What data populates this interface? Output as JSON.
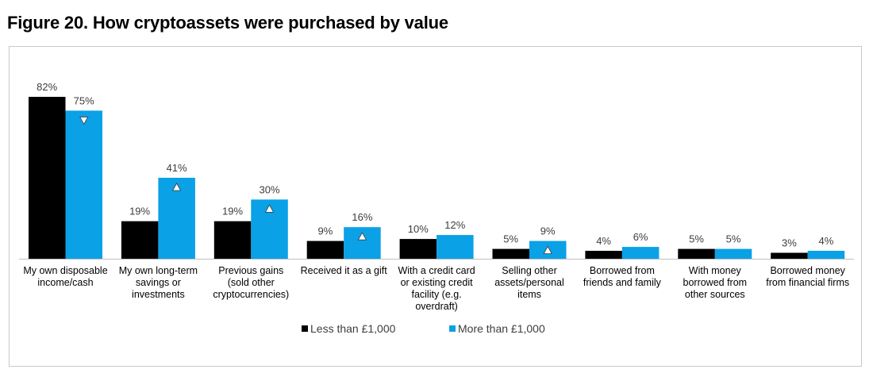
{
  "figure_title": "Figure 20. How cryptoassets were purchased by value",
  "chart_data": {
    "type": "bar",
    "title": "Figure 20. How cryptoassets were purchased by value",
    "xlabel": "",
    "ylabel": "",
    "ylim": [
      0,
      85
    ],
    "grid": false,
    "unit": "%",
    "categories": [
      [
        "My own disposable",
        "income/cash"
      ],
      [
        "My own long-term",
        "savings or",
        "investments"
      ],
      [
        "Previous gains",
        "(sold other",
        "cryptocurrencies)"
      ],
      [
        "Received it as a gift"
      ],
      [
        "With a credit card",
        "or existing credit",
        "facility (e.g.",
        "overdraft)"
      ],
      [
        "Selling other",
        "assets/personal",
        "items"
      ],
      [
        "Borrowed from",
        "friends and family"
      ],
      [
        "With money",
        "borrowed from",
        "other sources"
      ],
      [
        "Borrowed money",
        "from financial firms"
      ]
    ],
    "series": [
      {
        "name": "Less than £1,000",
        "color": "#000000",
        "values": [
          82,
          19,
          19,
          9,
          10,
          5,
          4,
          5,
          3
        ]
      },
      {
        "name": "More than £1,000",
        "color": "#0aa1e6",
        "values": [
          75,
          41,
          30,
          16,
          12,
          9,
          6,
          5,
          4
        ],
        "significance_markers": [
          "down",
          "up",
          "up",
          "up",
          null,
          "up",
          null,
          null,
          null
        ]
      }
    ],
    "legend": {
      "position": "bottom-center",
      "entries": [
        "Less than £1,000",
        "More than £1,000"
      ]
    }
  }
}
